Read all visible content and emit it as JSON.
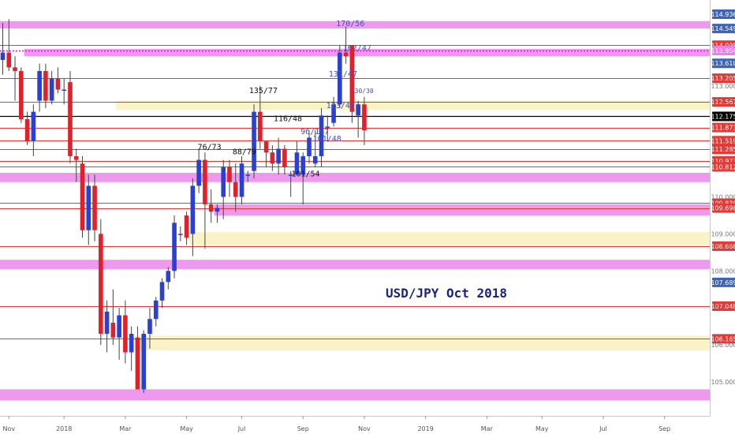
{
  "chart_data": {
    "type": "candlestick",
    "title": "USD/JPY Oct 2018",
    "xlabel": "",
    "ylabel": "",
    "ylim": [
      104.4,
      115.1
    ],
    "x_tick_labels": [
      "Nov",
      "2018",
      "Mar",
      "May",
      "Jul",
      "Sep",
      "Nov",
      "2019",
      "Mar",
      "May",
      "Jul",
      "Sep"
    ],
    "x_tick_index": [
      1,
      10,
      20,
      30,
      39,
      49,
      59,
      69,
      79,
      88,
      98,
      108
    ],
    "y_tick_labels": [
      {
        "label": "114.936",
        "value": 114.936,
        "bg": "#3f64b4"
      },
      {
        "label": "114.549",
        "value": 114.549,
        "bg": "#3f64b4"
      },
      {
        "label": "114.098",
        "value": 114.098,
        "bg": "#e53935"
      },
      {
        "label": "113.954",
        "value": 113.954,
        "bg": "#ea80ea"
      },
      {
        "label": "113.610",
        "value": 113.61,
        "bg": "#3f64b4"
      },
      {
        "label": "113.205",
        "value": 113.205,
        "bg": "#e53935"
      },
      {
        "label": "113.000",
        "value": 113.0,
        "bg": ""
      },
      {
        "label": "112.567",
        "value": 112.567,
        "bg": "#e53935"
      },
      {
        "label": "112.175",
        "value": 112.175,
        "bg": "#000000"
      },
      {
        "label": "111.873",
        "value": 111.873,
        "bg": "#e53935"
      },
      {
        "label": "111.519",
        "value": 111.519,
        "bg": "#e53935"
      },
      {
        "label": "111.285",
        "value": 111.285,
        "bg": "#e53935"
      },
      {
        "label": "110.973",
        "value": 110.973,
        "bg": "#e53935"
      },
      {
        "label": "110.812",
        "value": 110.812,
        "bg": "#e53935"
      },
      {
        "label": "110.000",
        "value": 110.0,
        "bg": ""
      },
      {
        "label": "109.830",
        "value": 109.83,
        "bg": "#e53935"
      },
      {
        "label": "109.698",
        "value": 109.698,
        "bg": "#e53935"
      },
      {
        "label": "109.000",
        "value": 109.0,
        "bg": ""
      },
      {
        "label": "108.668",
        "value": 108.668,
        "bg": "#e53935"
      },
      {
        "label": "108.000",
        "value": 108.0,
        "bg": ""
      },
      {
        "label": "107.689",
        "value": 107.689,
        "bg": "#3f64b4"
      },
      {
        "label": "107.048",
        "value": 107.048,
        "bg": "#e53935"
      },
      {
        "label": "106.165",
        "value": 106.165,
        "bg": "#e53935"
      },
      {
        "label": "106.000",
        "value": 106.0,
        "bg": ""
      },
      {
        "label": "105.000",
        "value": 105.0,
        "bg": ""
      }
    ],
    "h_lines": [
      {
        "value": 114.098,
        "color": "#e53935"
      },
      {
        "value": 113.954,
        "color": "#c400c4",
        "dashed": true
      },
      {
        "value": 113.205,
        "color": "#e53935"
      },
      {
        "value": 112.567,
        "color": "#e53935"
      },
      {
        "value": 112.175,
        "color": "#000000"
      },
      {
        "value": 111.873,
        "color": "#e53935"
      },
      {
        "value": 111.519,
        "color": "#e53935"
      },
      {
        "value": 111.285,
        "color": "#e53935"
      },
      {
        "value": 110.973,
        "color": "#e53935"
      },
      {
        "value": 110.812,
        "color": "#e53935"
      },
      {
        "value": 109.83,
        "color": "#e53935"
      },
      {
        "value": 109.698,
        "color": "#e53935"
      },
      {
        "value": 108.668,
        "color": "#e53935"
      },
      {
        "value": 107.048,
        "color": "#e53935"
      },
      {
        "value": 106.165,
        "color": "#e53935"
      }
    ],
    "zones": [
      {
        "from": 114.55,
        "to": 114.75,
        "color": "#ee99ee",
        "start_index": 0
      },
      {
        "from": 113.8,
        "to": 114.0,
        "color": "#ee99ee",
        "start_index": 4
      },
      {
        "from": 112.35,
        "to": 112.6,
        "color": "#fbf3c8",
        "start_index": 19
      },
      {
        "from": 110.4,
        "to": 110.65,
        "color": "#ee99ee",
        "start_index": 0
      },
      {
        "from": 109.5,
        "to": 109.8,
        "color": "#ee99ee",
        "start_index": 35
      },
      {
        "from": 108.7,
        "to": 109.05,
        "color": "#fbf3c8",
        "start_index": 31
      },
      {
        "from": 108.05,
        "to": 108.3,
        "color": "#ee99ee",
        "start_index": 0
      },
      {
        "from": 105.85,
        "to": 106.25,
        "color": "#fbf3c8",
        "start_index": 22
      },
      {
        "from": 104.5,
        "to": 104.8,
        "color": "#ee99ee",
        "start_index": 0
      }
    ],
    "candles": [
      {
        "o": 113.7,
        "h": 114.7,
        "l": 113.3,
        "c": 113.9
      },
      {
        "o": 113.9,
        "h": 114.8,
        "l": 113.4,
        "c": 113.5
      },
      {
        "o": 113.5,
        "h": 113.8,
        "l": 112.6,
        "c": 113.4
      },
      {
        "o": 113.4,
        "h": 113.5,
        "l": 112.0,
        "c": 112.1
      },
      {
        "o": 112.1,
        "h": 112.3,
        "l": 111.4,
        "c": 111.5
      },
      {
        "o": 111.5,
        "h": 112.5,
        "l": 111.1,
        "c": 112.3
      },
      {
        "o": 112.6,
        "h": 113.6,
        "l": 112.3,
        "c": 113.4
      },
      {
        "o": 113.4,
        "h": 113.6,
        "l": 112.4,
        "c": 112.6
      },
      {
        "o": 112.6,
        "h": 113.4,
        "l": 112.5,
        "c": 113.2
      },
      {
        "o": 113.2,
        "h": 113.5,
        "l": 112.8,
        "c": 112.9
      },
      {
        "o": 112.9,
        "h": 113.2,
        "l": 112.5,
        "c": 112.9
      },
      {
        "o": 113.1,
        "h": 113.4,
        "l": 110.9,
        "c": 111.1
      },
      {
        "o": 111.1,
        "h": 111.3,
        "l": 110.4,
        "c": 111.0
      },
      {
        "o": 110.9,
        "h": 111.1,
        "l": 108.9,
        "c": 109.1
      },
      {
        "o": 109.1,
        "h": 110.6,
        "l": 108.7,
        "c": 110.3
      },
      {
        "o": 110.3,
        "h": 110.6,
        "l": 108.8,
        "c": 109.1
      },
      {
        "o": 109.0,
        "h": 109.4,
        "l": 106.0,
        "c": 106.3
      },
      {
        "o": 106.3,
        "h": 107.2,
        "l": 105.8,
        "c": 106.9
      },
      {
        "o": 106.6,
        "h": 107.5,
        "l": 106.0,
        "c": 106.2
      },
      {
        "o": 106.2,
        "h": 107.0,
        "l": 105.6,
        "c": 106.8
      },
      {
        "o": 106.8,
        "h": 107.2,
        "l": 105.5,
        "c": 105.8
      },
      {
        "o": 105.8,
        "h": 106.5,
        "l": 105.3,
        "c": 106.3
      },
      {
        "o": 106.2,
        "h": 106.5,
        "l": 104.8,
        "c": 104.8
      },
      {
        "o": 104.8,
        "h": 106.4,
        "l": 104.7,
        "c": 106.3
      },
      {
        "o": 106.3,
        "h": 107.0,
        "l": 105.9,
        "c": 106.7
      },
      {
        "o": 106.7,
        "h": 107.3,
        "l": 106.5,
        "c": 107.2
      },
      {
        "o": 107.2,
        "h": 107.8,
        "l": 107.0,
        "c": 107.7
      },
      {
        "o": 107.7,
        "h": 108.1,
        "l": 107.5,
        "c": 108.0
      },
      {
        "o": 108.0,
        "h": 109.5,
        "l": 107.8,
        "c": 109.3
      },
      {
        "o": 109.0,
        "h": 109.2,
        "l": 108.8,
        "c": 109.0
      },
      {
        "o": 109.5,
        "h": 109.6,
        "l": 108.7,
        "c": 108.9
      },
      {
        "o": 109.0,
        "h": 110.5,
        "l": 108.4,
        "c": 110.3
      },
      {
        "o": 110.3,
        "h": 111.3,
        "l": 110.1,
        "c": 111.0
      },
      {
        "o": 111.0,
        "h": 111.2,
        "l": 108.6,
        "c": 109.8
      },
      {
        "o": 109.8,
        "h": 110.2,
        "l": 109.3,
        "c": 109.6
      },
      {
        "o": 109.6,
        "h": 109.8,
        "l": 109.3,
        "c": 109.7
      },
      {
        "o": 110.0,
        "h": 111.0,
        "l": 109.4,
        "c": 110.8
      },
      {
        "o": 110.8,
        "h": 111.0,
        "l": 110.0,
        "c": 110.4
      },
      {
        "o": 110.4,
        "h": 110.9,
        "l": 109.6,
        "c": 110.0
      },
      {
        "o": 110.0,
        "h": 111.1,
        "l": 109.8,
        "c": 110.9
      },
      {
        "o": 110.6,
        "h": 110.7,
        "l": 110.4,
        "c": 110.6
      },
      {
        "o": 110.7,
        "h": 112.5,
        "l": 110.5,
        "c": 112.3
      },
      {
        "o": 112.3,
        "h": 113.0,
        "l": 111.3,
        "c": 111.5
      },
      {
        "o": 111.5,
        "h": 111.5,
        "l": 110.8,
        "c": 111.2
      },
      {
        "o": 111.2,
        "h": 111.4,
        "l": 110.7,
        "c": 110.9
      },
      {
        "o": 110.9,
        "h": 111.6,
        "l": 110.6,
        "c": 111.3
      },
      {
        "o": 111.3,
        "h": 111.4,
        "l": 110.6,
        "c": 110.8
      },
      {
        "o": 110.6,
        "h": 110.7,
        "l": 110.0,
        "c": 110.6
      },
      {
        "o": 110.6,
        "h": 111.5,
        "l": 110.6,
        "c": 111.2
      },
      {
        "o": 110.6,
        "h": 111.2,
        "l": 109.8,
        "c": 111.1
      },
      {
        "o": 111.1,
        "h": 111.8,
        "l": 110.9,
        "c": 111.6
      },
      {
        "o": 110.9,
        "h": 111.8,
        "l": 110.8,
        "c": 111.1
      },
      {
        "o": 111.1,
        "h": 112.4,
        "l": 110.8,
        "c": 112.2
      },
      {
        "o": 111.9,
        "h": 112.2,
        "l": 111.5,
        "c": 111.9
      },
      {
        "o": 112.0,
        "h": 112.7,
        "l": 111.9,
        "c": 112.5
      },
      {
        "o": 112.5,
        "h": 114.1,
        "l": 112.4,
        "c": 113.9
      },
      {
        "o": 113.9,
        "h": 114.6,
        "l": 113.6,
        "c": 113.8
      },
      {
        "o": 114.1,
        "h": 114.1,
        "l": 112.0,
        "c": 112.3
      },
      {
        "o": 112.2,
        "h": 112.6,
        "l": 111.6,
        "c": 112.5
      },
      {
        "o": 112.5,
        "h": 112.7,
        "l": 111.4,
        "c": 111.8
      }
    ],
    "annotations": [
      {
        "text": "170/56",
        "x_index": 54.4,
        "y": 114.62,
        "color": "#3f51b5"
      },
      {
        "text": "162/47",
        "x_index": 55.5,
        "y": 113.95,
        "color": "#3f51b5"
      },
      {
        "text": "131/47",
        "x_index": 53.2,
        "y": 113.25,
        "color": "#3f51b5"
      },
      {
        "text": "130/30",
        "x_index": 56.8,
        "y": 112.8,
        "color": "#3f51b5",
        "small": true
      },
      {
        "text": "123/49",
        "x_index": 52.8,
        "y": 112.4,
        "color": "#3f51b5"
      },
      {
        "text": "135/77",
        "x_index": 40.2,
        "y": 112.8,
        "color": "#111111"
      },
      {
        "text": "116/48",
        "x_index": 44.2,
        "y": 112.05,
        "color": "#111111"
      },
      {
        "text": "96/167",
        "x_index": 48.6,
        "y": 111.7,
        "color": "#3f51b5"
      },
      {
        "text": "101/48",
        "x_index": 50.6,
        "y": 111.5,
        "color": "#3f51b5"
      },
      {
        "text": "76/73",
        "x_index": 31.8,
        "y": 111.28,
        "color": "#111111"
      },
      {
        "text": "88/79",
        "x_index": 37.5,
        "y": 111.15,
        "color": "#111111"
      },
      {
        "text": "101/54",
        "x_index": 47.1,
        "y": 110.55,
        "color": "#111111"
      }
    ],
    "bull_color": "#2a3fd6",
    "bear_color": "#e0202a",
    "annotation_text_color": "#1a237e",
    "last_price": 112.175
  }
}
